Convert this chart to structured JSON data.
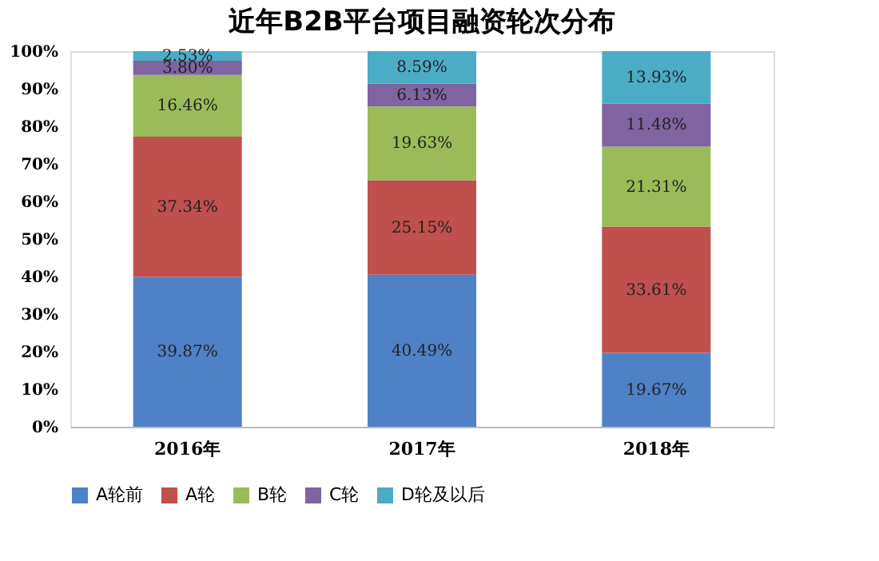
{
  "chart_data": {
    "type": "bar",
    "stacked": true,
    "title": "近年B2B平台项目融资轮次分布",
    "categories": [
      "2016年",
      "2017年",
      "2018年"
    ],
    "series": [
      {
        "name": "A轮前",
        "color": "#4f81c7",
        "values": [
          39.87,
          40.49,
          19.67
        ],
        "value_labels": [
          "39.87%",
          "40.49%",
          "19.67%"
        ]
      },
      {
        "name": "A轮",
        "color": "#c0504d",
        "values": [
          37.34,
          25.15,
          33.61
        ],
        "value_labels": [
          "37.34%",
          "25.15%",
          "33.61%"
        ]
      },
      {
        "name": "B轮",
        "color": "#9bbb59",
        "values": [
          16.46,
          19.63,
          21.31
        ],
        "value_labels": [
          "16.46%",
          "19.63%",
          "21.31%"
        ]
      },
      {
        "name": "C轮",
        "color": "#8064a2",
        "values": [
          3.8,
          6.13,
          11.48
        ],
        "value_labels": [
          "3.80%",
          "6.13%",
          "11.48%"
        ]
      },
      {
        "name": "D轮及以后",
        "color": "#4bacc6",
        "values": [
          2.53,
          8.59,
          13.93
        ],
        "value_labels": [
          "2.53%",
          "8.59%",
          "13.93%"
        ]
      }
    ],
    "ylim": [
      0,
      100
    ],
    "yticks": [
      {
        "value": 0,
        "label": "0%"
      },
      {
        "value": 10,
        "label": "10%"
      },
      {
        "value": 20,
        "label": "20%"
      },
      {
        "value": 30,
        "label": "30%"
      },
      {
        "value": 40,
        "label": "40%"
      },
      {
        "value": 50,
        "label": "50%"
      },
      {
        "value": 60,
        "label": "60%"
      },
      {
        "value": 70,
        "label": "70%"
      },
      {
        "value": 80,
        "label": "80%"
      },
      {
        "value": 90,
        "label": "90%"
      },
      {
        "value": 100,
        "label": "100%"
      }
    ],
    "legend": "bottom",
    "grid": false
  }
}
